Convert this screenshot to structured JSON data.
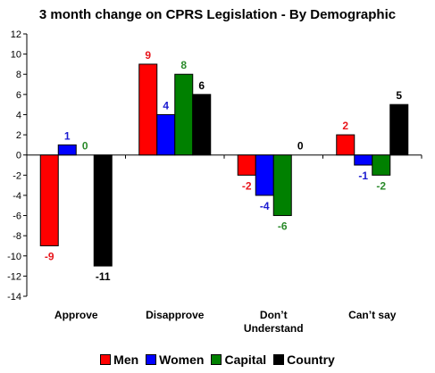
{
  "chart_data": {
    "type": "bar",
    "title": "3 month change on CPRS Legislation - By Demographic",
    "categories": [
      [
        "Approve"
      ],
      [
        "Disapprove"
      ],
      [
        "Don’t",
        "Understand"
      ],
      [
        "Can’t say"
      ]
    ],
    "series": [
      {
        "name": "Men",
        "color": "#ff0000",
        "label_color": "#e8161c",
        "values": [
          -9,
          9,
          -2,
          2
        ]
      },
      {
        "name": "Women",
        "color": "#0000ff",
        "label_color": "#1a1ad0",
        "values": [
          1,
          4,
          -4,
          -1
        ]
      },
      {
        "name": "Capital",
        "color": "#008000",
        "label_color": "#2a8a2a",
        "values": [
          0,
          8,
          -6,
          -2
        ]
      },
      {
        "name": "Country",
        "color": "#000000",
        "label_color": "#000000",
        "values": [
          -11,
          6,
          0,
          5
        ]
      }
    ],
    "ylim": [
      -14,
      12
    ],
    "ytick_step": 2,
    "grid": false,
    "legend_position": "bottom"
  }
}
